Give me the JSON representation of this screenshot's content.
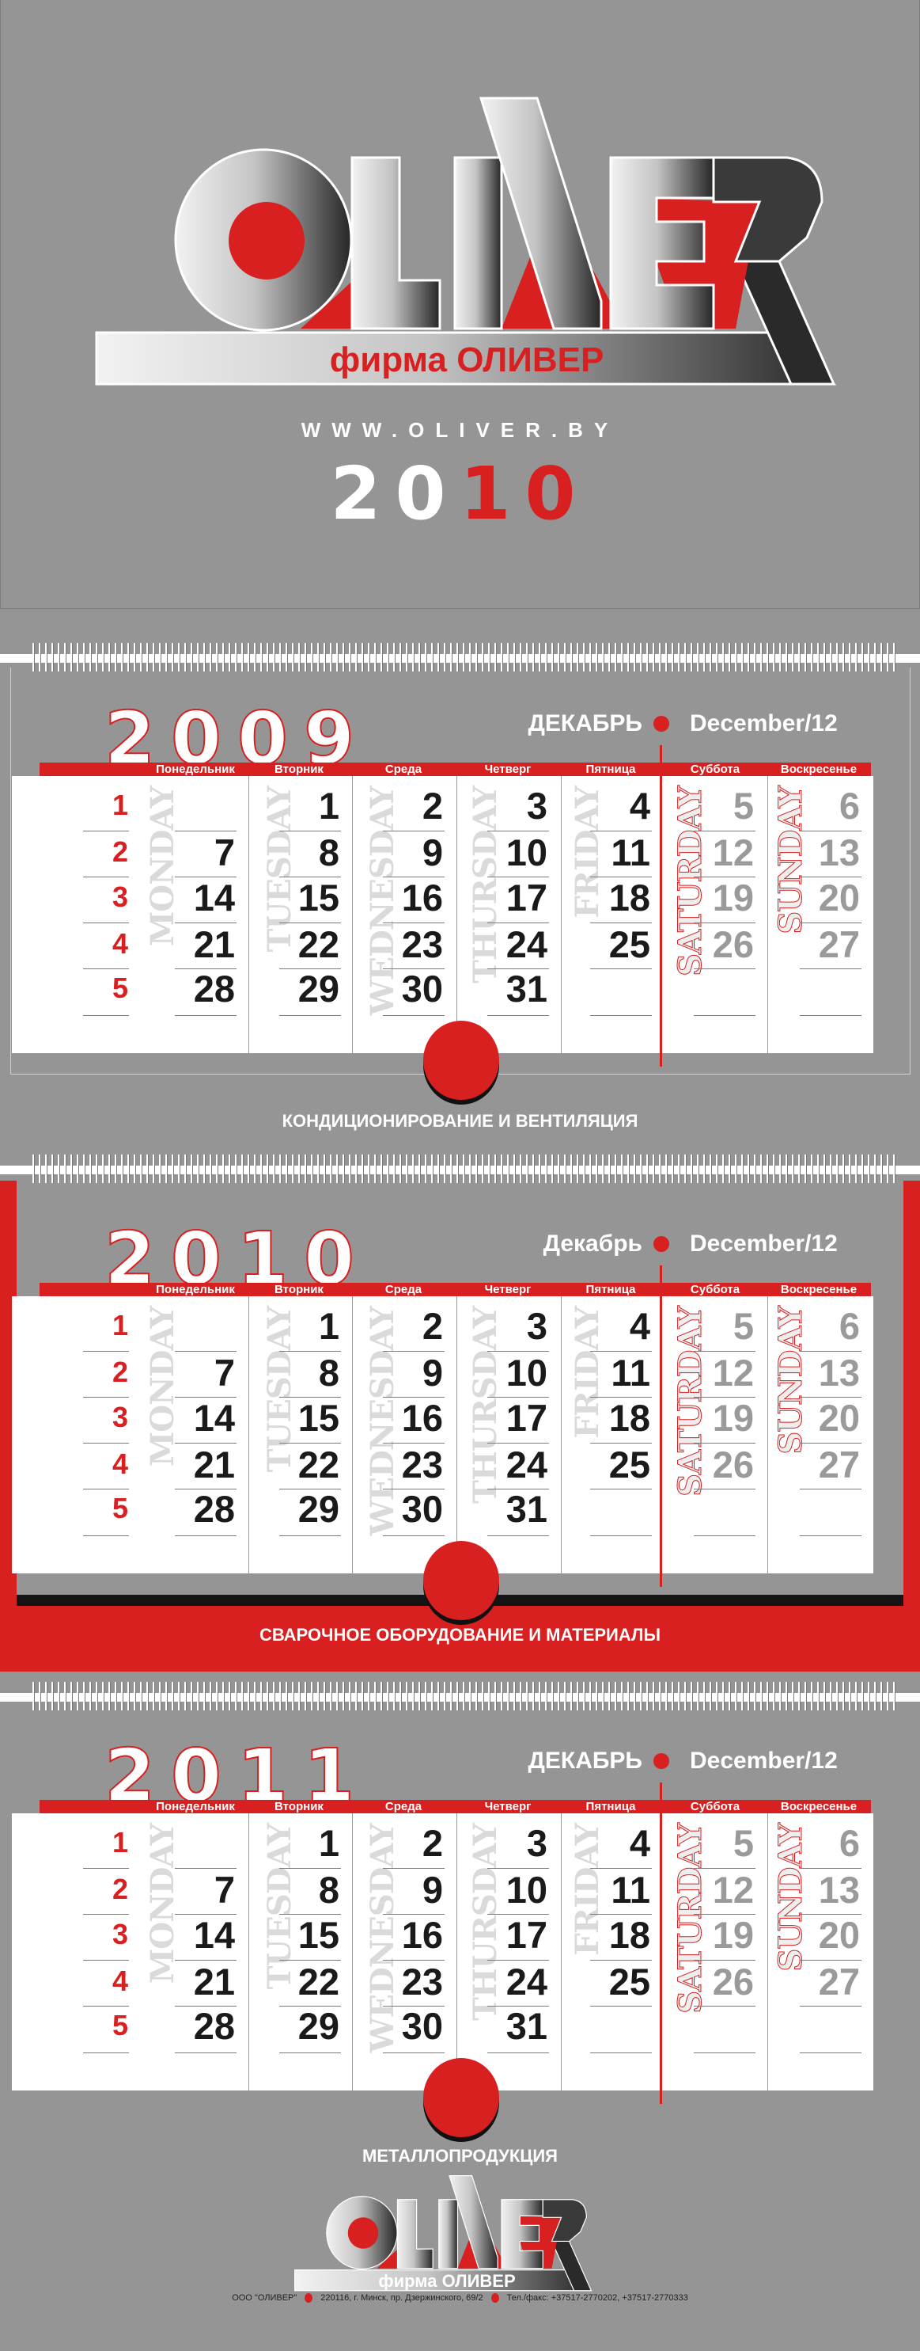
{
  "colors": {
    "background": "#959595",
    "accent": "#d7201f",
    "text_dark": "#1a1a1a",
    "weekend": "#9a9a9a"
  },
  "header": {
    "logo_wordmark": "OLIVER",
    "firm_name": "фирма ОЛИВЕР",
    "url": "WWW.OLIVER.BY",
    "year_white": "20",
    "year_red": "10"
  },
  "weekdays_ru": [
    "Понедельник",
    "Вторник",
    "Среда",
    "Четверг",
    "Пятница",
    "Суббота",
    "Воскресенье"
  ],
  "weekdays_en": [
    "MONDAY",
    "TUESDAY",
    "WEDNESDAY",
    "THURSDAY",
    "FRIDAY",
    "SATURDAY",
    "SUNDAY"
  ],
  "calendars": [
    {
      "year": "2009",
      "month_ru": "ДЕКАБРЬ",
      "month_en": "December/12",
      "caption": "КОНДИЦИОНИРОВАНИЕ И ВЕНТИЛЯЦИЯ",
      "week_numbers": [
        "1",
        "2",
        "3",
        "4",
        "5"
      ],
      "weeks": [
        [
          "",
          "1",
          "2",
          "3",
          "4",
          "5",
          "6"
        ],
        [
          "7",
          "8",
          "9",
          "10",
          "11",
          "12",
          "13"
        ],
        [
          "14",
          "15",
          "16",
          "17",
          "18",
          "19",
          "20"
        ],
        [
          "21",
          "22",
          "23",
          "24",
          "25",
          "26",
          "27"
        ],
        [
          "28",
          "29",
          "30",
          "31",
          "",
          "",
          ""
        ]
      ]
    },
    {
      "year": "2010",
      "month_ru": "Декабрь",
      "month_en": "December/12",
      "caption": "СВАРОЧНОЕ  ОБОРУДОВАНИЕ И МАТЕРИАЛЫ",
      "week_numbers": [
        "1",
        "2",
        "3",
        "4",
        "5"
      ],
      "weeks": [
        [
          "",
          "1",
          "2",
          "3",
          "4",
          "5",
          "6"
        ],
        [
          "7",
          "8",
          "9",
          "10",
          "11",
          "12",
          "13"
        ],
        [
          "14",
          "15",
          "16",
          "17",
          "18",
          "19",
          "20"
        ],
        [
          "21",
          "22",
          "23",
          "24",
          "25",
          "26",
          "27"
        ],
        [
          "28",
          "29",
          "30",
          "31",
          "",
          "",
          ""
        ]
      ]
    },
    {
      "year": "2011",
      "month_ru": "ДЕКАБРЬ",
      "month_en": "December/12",
      "caption": "МЕТАЛЛОПРОДУКЦИЯ",
      "week_numbers": [
        "1",
        "2",
        "3",
        "4",
        "5"
      ],
      "weeks": [
        [
          "",
          "1",
          "2",
          "3",
          "4",
          "5",
          "6"
        ],
        [
          "7",
          "8",
          "9",
          "10",
          "11",
          "12",
          "13"
        ],
        [
          "14",
          "15",
          "16",
          "17",
          "18",
          "19",
          "20"
        ],
        [
          "21",
          "22",
          "23",
          "24",
          "25",
          "26",
          "27"
        ],
        [
          "28",
          "29",
          "30",
          "31",
          "",
          "",
          ""
        ]
      ]
    }
  ],
  "footer": {
    "firm_name": "фирма ОЛИВЕР",
    "company": "ООО \"ОЛИВЕР\"",
    "address": "220116, г. Минск, пр. Дзержинского, 69/2",
    "phone": "Тел./факс: +37517-2770202, +37517-2770333"
  }
}
